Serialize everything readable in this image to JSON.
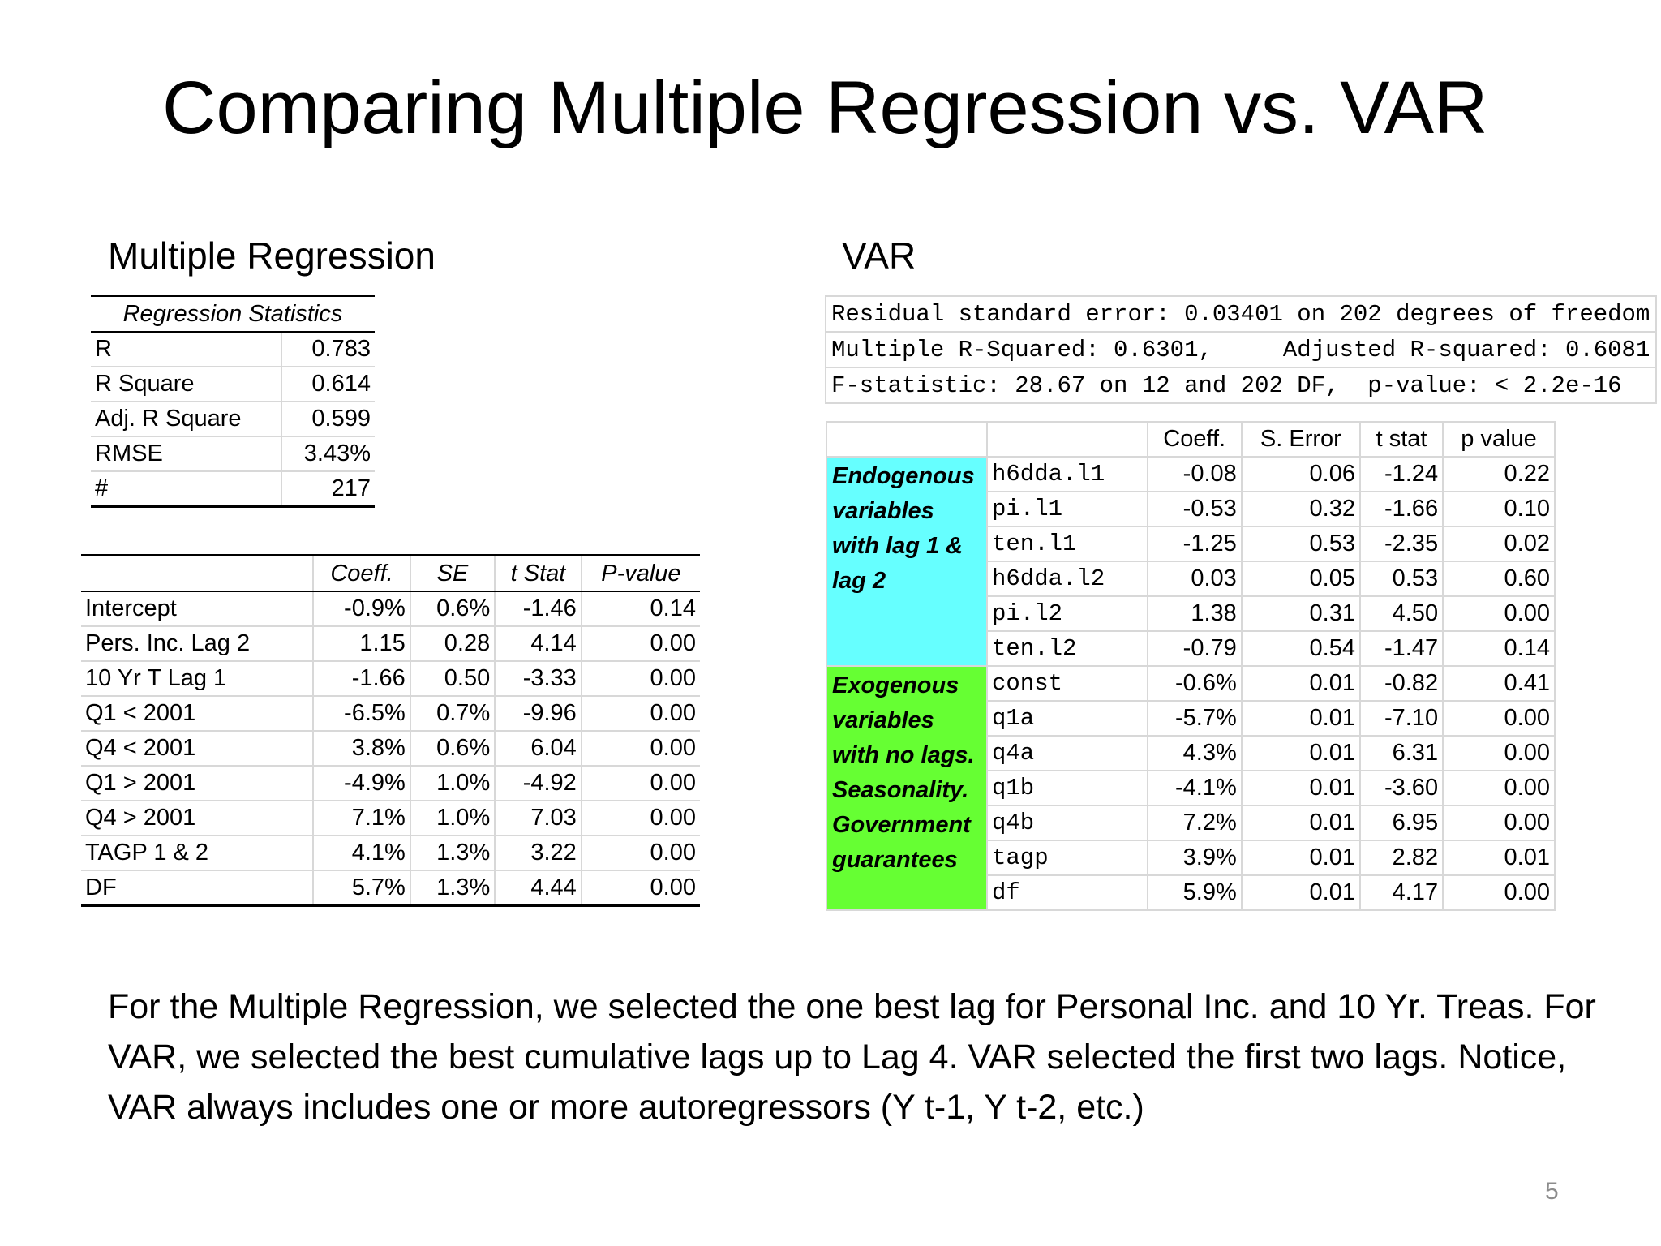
{
  "title": "Comparing Multiple Regression vs. VAR",
  "multiple_regression": {
    "label": "Multiple Regression",
    "stats_header": "Regression Statistics",
    "stats": [
      {
        "name": "R",
        "value": "0.783"
      },
      {
        "name": "R Square",
        "value": "0.614"
      },
      {
        "name": "Adj. R Square",
        "value": "0.599"
      },
      {
        "name": "RMSE",
        "value": "3.43%"
      },
      {
        "name": "#",
        "value": "217"
      }
    ],
    "coef_headers": [
      "",
      "Coeff.",
      "SE",
      "t Stat",
      "P-value"
    ],
    "coef_rows": [
      [
        "Intercept",
        "-0.9%",
        "0.6%",
        "-1.46",
        "0.14"
      ],
      [
        "Pers. Inc. Lag 2",
        "1.15",
        "0.28",
        "4.14",
        "0.00"
      ],
      [
        "10 Yr T Lag 1",
        "-1.66",
        "0.50",
        "-3.33",
        "0.00"
      ],
      [
        "Q1 < 2001",
        "-6.5%",
        "0.7%",
        "-9.96",
        "0.00"
      ],
      [
        "Q4 < 2001",
        "3.8%",
        "0.6%",
        "6.04",
        "0.00"
      ],
      [
        "Q1 > 2001",
        "-4.9%",
        "1.0%",
        "-4.92",
        "0.00"
      ],
      [
        "Q4 > 2001",
        "7.1%",
        "1.0%",
        "7.03",
        "0.00"
      ],
      [
        "TAGP 1 & 2",
        "4.1%",
        "1.3%",
        "3.22",
        "0.00"
      ],
      [
        "DF",
        "5.7%",
        "1.3%",
        "4.44",
        "0.00"
      ]
    ]
  },
  "var": {
    "label": "VAR",
    "summary_lines": [
      "Residual standard error: 0.03401 on 202 degrees of freedom",
      "Multiple R-Squared: 0.6301,     Adjusted R-squared: 0.6081",
      "F-statistic: 28.67 on 12 and 202 DF,  p-value: < 2.2e-16"
    ],
    "coef_headers": [
      "",
      "",
      "Coeff.",
      "S. Error",
      "t stat",
      "p value"
    ],
    "endogenous_label": "Endogenous variables with lag 1 & lag 2",
    "exogenous_label": "Exogenous variables with no lags. Seasonality. Government guarantees",
    "endogenous_rows": [
      [
        "h6dda.l1",
        "-0.08",
        "0.06",
        "-1.24",
        "0.22"
      ],
      [
        "pi.l1",
        "-0.53",
        "0.32",
        "-1.66",
        "0.10"
      ],
      [
        "ten.l1",
        "-1.25",
        "0.53",
        "-2.35",
        "0.02"
      ],
      [
        "h6dda.l2",
        "0.03",
        "0.05",
        "0.53",
        "0.60"
      ],
      [
        "pi.l2",
        "1.38",
        "0.31",
        "4.50",
        "0.00"
      ],
      [
        "ten.l2",
        "-0.79",
        "0.54",
        "-1.47",
        "0.14"
      ]
    ],
    "exogenous_rows": [
      [
        "const",
        "-0.6%",
        "0.01",
        "-0.82",
        "0.41"
      ],
      [
        "q1a",
        "-5.7%",
        "0.01",
        "-7.10",
        "0.00"
      ],
      [
        "q4a",
        "4.3%",
        "0.01",
        "6.31",
        "0.00"
      ],
      [
        "q1b",
        "-4.1%",
        "0.01",
        "-3.60",
        "0.00"
      ],
      [
        "q4b",
        "7.2%",
        "0.01",
        "6.95",
        "0.00"
      ],
      [
        "tagp",
        "3.9%",
        "0.01",
        "2.82",
        "0.01"
      ],
      [
        "df",
        "5.9%",
        "0.01",
        "4.17",
        "0.00"
      ]
    ]
  },
  "footnote": "For the Multiple Regression, we selected the one best lag for Personal Inc. and 10 Yr. Treas.  For VAR, we selected the best cumulative lags up to Lag 4.  VAR selected the first two lags.  Notice, VAR always includes one or more autoregressors (Y t-1, Y t-2, etc.)",
  "page_number": "5",
  "colors": {
    "endogenous_bg": "#66ffff",
    "exogenous_bg": "#66ff33",
    "grid": "#d8d8d8"
  }
}
